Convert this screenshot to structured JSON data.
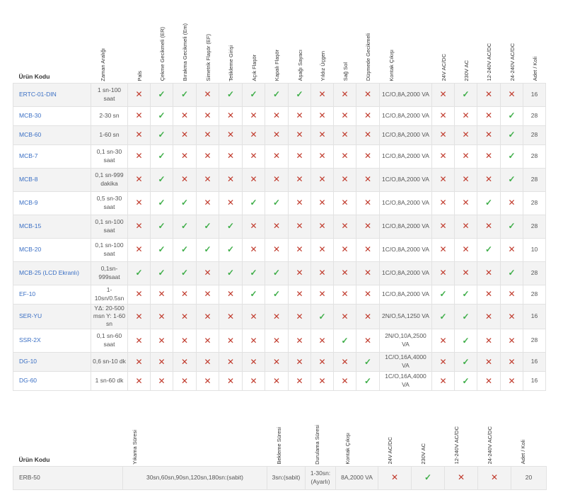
{
  "table1": {
    "headers": [
      "Ürün Kodu",
      "Zaman Aralığı",
      "Pals",
      "Çekme Gecikmeli (ER)",
      "Bırakma Gecikmeli (Em)",
      "Simetrik Flaşör (EF)",
      "Tetikleme Girişi",
      "Açık Flaşör",
      "Kapalı Flaşör",
      "Aşağı Sayacı",
      "Yıldız Üçgen",
      "Sağ Sol",
      "Düşmede Gecikmeli",
      "Kontak Çıkışı",
      "24V AC/DC",
      "230V AC",
      "12-240V AC/DC",
      "24-240V AC/DC",
      "Adet / Koli"
    ],
    "rows": [
      {
        "code": "ERTC-01-DIN",
        "time": "1 sn-100 saat",
        "flags": [
          0,
          1,
          1,
          0,
          1,
          1,
          1,
          1,
          0,
          0,
          0
        ],
        "contact": "1C/O,8A,2000 VA",
        "volts": [
          0,
          1,
          0,
          0
        ],
        "qty": "16"
      },
      {
        "code": "MCB-30",
        "time": "2-30 sn",
        "flags": [
          0,
          1,
          0,
          0,
          0,
          0,
          0,
          0,
          0,
          0,
          0
        ],
        "contact": "1C/O,8A,2000 VA",
        "volts": [
          0,
          0,
          0,
          1
        ],
        "qty": "28"
      },
      {
        "code": "MCB-60",
        "time": "1-60 sn",
        "flags": [
          0,
          1,
          0,
          0,
          0,
          0,
          0,
          0,
          0,
          0,
          0
        ],
        "contact": "1C/O,8A,2000 VA",
        "volts": [
          0,
          0,
          0,
          1
        ],
        "qty": "28"
      },
      {
        "code": "MCB-7",
        "time": "0,1 sn-30 saat",
        "flags": [
          0,
          1,
          0,
          0,
          0,
          0,
          0,
          0,
          0,
          0,
          0
        ],
        "contact": "1C/O,8A,2000 VA",
        "volts": [
          0,
          0,
          0,
          1
        ],
        "qty": "28"
      },
      {
        "code": "MCB-8",
        "time": "0,1 sn-999 dakika",
        "flags": [
          0,
          1,
          0,
          0,
          0,
          0,
          0,
          0,
          0,
          0,
          0
        ],
        "contact": "1C/O,8A,2000 VA",
        "volts": [
          0,
          0,
          0,
          1
        ],
        "qty": "28"
      },
      {
        "code": "MCB-9",
        "time": "0,5 sn-30 saat",
        "flags": [
          0,
          1,
          1,
          0,
          0,
          1,
          1,
          0,
          0,
          0,
          0
        ],
        "contact": "1C/O,8A,2000 VA",
        "volts": [
          0,
          0,
          1,
          0
        ],
        "qty": "28"
      },
      {
        "code": "MCB-15",
        "time": "0,1 sn-100 saat",
        "flags": [
          0,
          1,
          1,
          1,
          1,
          0,
          0,
          0,
          0,
          0,
          0
        ],
        "contact": "1C/O,8A,2000 VA",
        "volts": [
          0,
          0,
          0,
          1
        ],
        "qty": "28"
      },
      {
        "code": "MCB-20",
        "time": "0,1 sn-100 saat",
        "flags": [
          0,
          1,
          1,
          1,
          1,
          0,
          0,
          0,
          0,
          0,
          0
        ],
        "contact": "1C/O,8A,2000 VA",
        "volts": [
          0,
          0,
          1,
          0
        ],
        "qty": "10"
      },
      {
        "code": "MCB-25 (LCD Ekranlı)",
        "time": "0,1sn-999saat",
        "flags": [
          1,
          1,
          1,
          0,
          1,
          1,
          1,
          0,
          0,
          0,
          0
        ],
        "contact": "1C/O,8A,2000 VA",
        "volts": [
          0,
          0,
          0,
          1
        ],
        "qty": "28"
      },
      {
        "code": "EF-10",
        "time": "1-10sn/0.5sn",
        "flags": [
          0,
          0,
          0,
          0,
          0,
          1,
          1,
          0,
          0,
          0,
          0
        ],
        "contact": "1C/O,8A,2000 VA",
        "volts": [
          1,
          1,
          0,
          0
        ],
        "qty": "28"
      },
      {
        "code": "SER-YU",
        "time": "YΔ: 20-500 msn Y: 1-60 sn",
        "flags": [
          0,
          0,
          0,
          0,
          0,
          0,
          0,
          0,
          1,
          0,
          0
        ],
        "contact": "2N/O,5A,1250 VA",
        "volts": [
          1,
          1,
          0,
          0
        ],
        "qty": "16"
      },
      {
        "code": "SSR-2X",
        "time": "0,1 sn-60 saat",
        "flags": [
          0,
          0,
          0,
          0,
          0,
          0,
          0,
          0,
          0,
          1,
          0
        ],
        "contact": "2N/O,10A,2500 VA",
        "volts": [
          0,
          1,
          0,
          0
        ],
        "qty": "28"
      },
      {
        "code": "DG-10",
        "time": "0,6 sn-10 dk",
        "flags": [
          0,
          0,
          0,
          0,
          0,
          0,
          0,
          0,
          0,
          0,
          1
        ],
        "contact": "1C/O,16A,4000 VA",
        "volts": [
          0,
          1,
          0,
          0
        ],
        "qty": "16"
      },
      {
        "code": "DG-60",
        "time": "1 sn-60 dk",
        "flags": [
          0,
          0,
          0,
          0,
          0,
          0,
          0,
          0,
          0,
          0,
          1
        ],
        "contact": "1C/O,16A,4000 VA",
        "volts": [
          0,
          1,
          0,
          0
        ],
        "qty": "16"
      }
    ]
  },
  "table2": {
    "headers": [
      "Ürün Kodu",
      "Yıkama Süresi",
      "Bekleme Süresi",
      "Durulama Süresi",
      "Kontak Çıkışı",
      "24V AC/DC",
      "230V AC",
      "12-240V AC/DC",
      "24-240V AC/DC",
      "Adet / Koli"
    ],
    "row": {
      "code": "ERB-50",
      "wash": "30sn,60sn,90sn,120sn,180sn:(sabit)",
      "wait": "3sn:(sabit)",
      "rinse": "1-30sn: (Ayarlı)",
      "contact": "8A,2000 VA",
      "volts": [
        0,
        1,
        0,
        0
      ],
      "qty": "20"
    }
  },
  "marks": {
    "yes": "✓",
    "no": "✕"
  },
  "colors": {
    "link": "#3a6fc4",
    "check": "#3fae49",
    "cross": "#c0392b"
  }
}
